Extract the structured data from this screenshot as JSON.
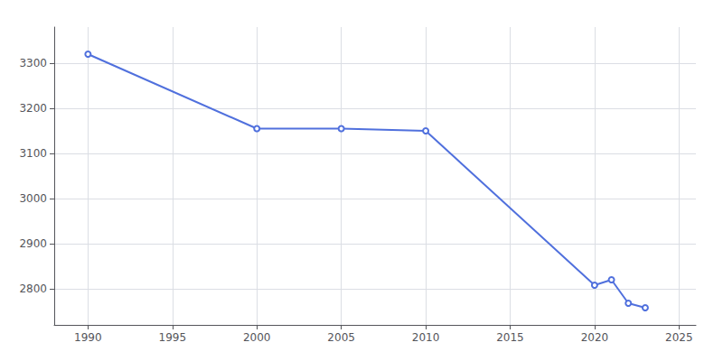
{
  "chart_data": {
    "type": "line",
    "x": [
      1990,
      2000,
      2005,
      2010,
      2020,
      2021,
      2022,
      2023
    ],
    "values": [
      3320,
      3155,
      3155,
      3150,
      2808,
      2820,
      2768,
      2758
    ],
    "xlim": [
      1988,
      2026
    ],
    "ylim": [
      2720,
      3380
    ],
    "xticks": [
      1990,
      1995,
      2000,
      2005,
      2010,
      2015,
      2020,
      2025
    ],
    "yticks": [
      2800,
      2900,
      3000,
      3100,
      3200,
      3300
    ],
    "grid": true
  }
}
